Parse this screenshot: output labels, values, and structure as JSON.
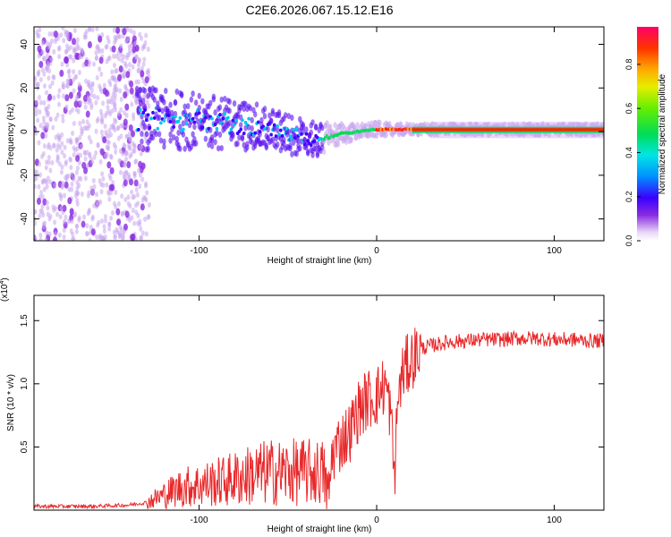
{
  "title": "C2E6.2026.067.15.12.E16",
  "chart_data": [
    {
      "type": "heatmap",
      "title": "C2E6.2026.067.15.12.E16",
      "xlabel": "Height of straight line (km)",
      "ylabel": "Frequency (Hz)",
      "xlim": [
        -193,
        128
      ],
      "ylim": [
        -50,
        48
      ],
      "x_ticks": [
        "-100",
        "0",
        "100"
      ],
      "y_ticks": [
        "-40",
        "-20",
        "0",
        "20",
        "40"
      ],
      "ridge": {
        "description_points_x": [
          -130,
          -100,
          -75,
          -55,
          -35,
          -20,
          -10,
          0,
          10,
          25,
          60,
          100,
          128
        ],
        "center_freq_hz": [
          6,
          5,
          3,
          0,
          -4,
          -1,
          0,
          1,
          1,
          1,
          1,
          1,
          1
        ],
        "spread_hz": [
          18,
          16,
          14,
          12,
          10,
          6,
          4,
          4,
          3,
          3,
          3,
          3,
          3
        ]
      },
      "colorbar": {
        "label": "Normalized spectral amplitude",
        "range": [
          0.0,
          0.97
        ],
        "ticks": [
          "0.0",
          "0.2",
          "0.4",
          "0.6",
          "0.8"
        ]
      }
    },
    {
      "type": "line",
      "xlabel": "Height of straight line (km)",
      "ylabel": "SNR (10 * v/v)",
      "y_exponent_label": "(x10",
      "y_exponent_sup": "4",
      "xlim": [
        -193,
        128
      ],
      "ylim": [
        0,
        1.7
      ],
      "x_ticks": [
        "-100",
        "0",
        "100"
      ],
      "y_ticks": [
        "0.5",
        "1.0",
        "1.5"
      ],
      "series": [
        {
          "name": "SNR",
          "color": "#e8282a",
          "x": [
            -193,
            -160,
            -140,
            -130,
            -120,
            -110,
            -100,
            -90,
            -80,
            -70,
            -60,
            -50,
            -40,
            -30,
            -27,
            -25,
            -20,
            -15,
            -10,
            -5,
            0,
            5,
            8,
            10,
            12,
            15,
            20,
            25,
            30,
            40,
            50,
            60,
            70,
            80,
            90,
            100,
            110,
            120,
            128
          ],
          "values": [
            0.03,
            0.03,
            0.04,
            0.06,
            0.12,
            0.18,
            0.2,
            0.22,
            0.25,
            0.28,
            0.3,
            0.3,
            0.3,
            0.3,
            0.1,
            0.45,
            0.55,
            0.62,
            0.8,
            0.88,
            0.9,
            1.0,
            0.75,
            0.25,
            0.9,
            1.1,
            1.2,
            1.28,
            1.3,
            1.33,
            1.34,
            1.35,
            1.35,
            1.36,
            1.36,
            1.35,
            1.35,
            1.34,
            1.34
          ]
        }
      ]
    }
  ]
}
